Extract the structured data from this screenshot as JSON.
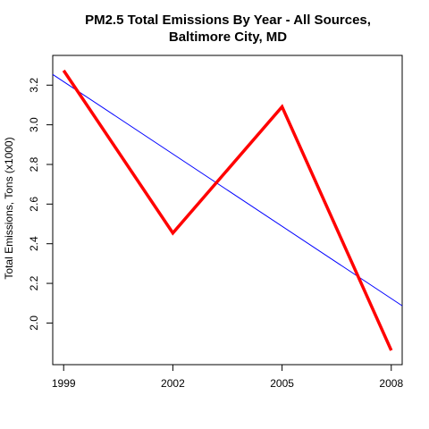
{
  "chart_data": {
    "type": "line",
    "title_lines": [
      "PM2.5 Total Emissions By Year - All Sources,",
      "Baltimore City, MD"
    ],
    "xlabel": "",
    "ylabel": "Total Emissions, Tons (x1000)",
    "x": [
      1999,
      2002,
      2005,
      2008
    ],
    "x_tick_labels": [
      "1999",
      "2002",
      "2005",
      "2008"
    ],
    "y_ticks": [
      2.0,
      2.2,
      2.4,
      2.6,
      2.8,
      3.0,
      3.2
    ],
    "y_tick_labels": [
      "2.0",
      "2.2",
      "2.4",
      "2.6",
      "2.8",
      "3.0",
      "3.2"
    ],
    "xlim": [
      1998.7,
      2008.3
    ],
    "ylim": [
      1.79,
      3.35
    ],
    "grid": false,
    "series": [
      {
        "values": [
          3.274,
          2.454,
          3.091,
          1.862
        ],
        "color": "#ff0000"
      }
    ],
    "trend_line": {
      "color": "#0000ff",
      "x": [
        1998.7,
        2008.3
      ],
      "y": [
        3.254,
        2.087
      ]
    }
  }
}
